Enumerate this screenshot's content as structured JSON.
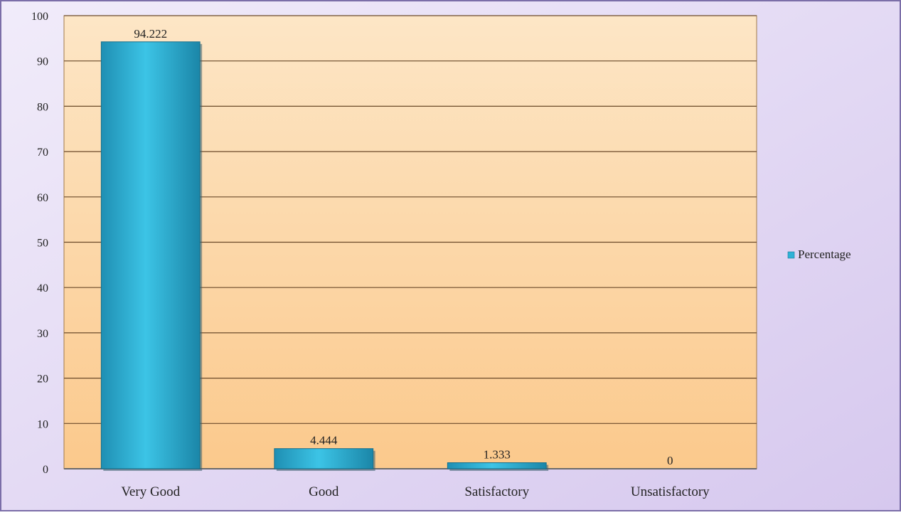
{
  "chart_data": {
    "type": "bar",
    "title": "",
    "xlabel": "",
    "ylabel": "",
    "categories": [
      "Very Good",
      "Good",
      "Satisfactory",
      "Unsatisfactory"
    ],
    "series": [
      {
        "name": "Percentage",
        "values": [
          94.222,
          4.444,
          1.333,
          0
        ],
        "data_labels": [
          "94.222",
          "4.444",
          "1.333",
          "0"
        ]
      }
    ],
    "ylim": [
      0,
      100
    ],
    "yticks": [
      0,
      10,
      20,
      30,
      40,
      50,
      60,
      70,
      80,
      90,
      100
    ],
    "ytick_labels": [
      "0",
      "10",
      "20",
      "30",
      "40",
      "50",
      "60",
      "70",
      "80",
      "90",
      "100"
    ],
    "grid": true,
    "legend_position": "right",
    "colors": {
      "bar": "#2fb2d6",
      "plot_background": "#fcd9a8",
      "chart_background": "#e6dcf4",
      "gridline": "#6b4a2a"
    }
  }
}
